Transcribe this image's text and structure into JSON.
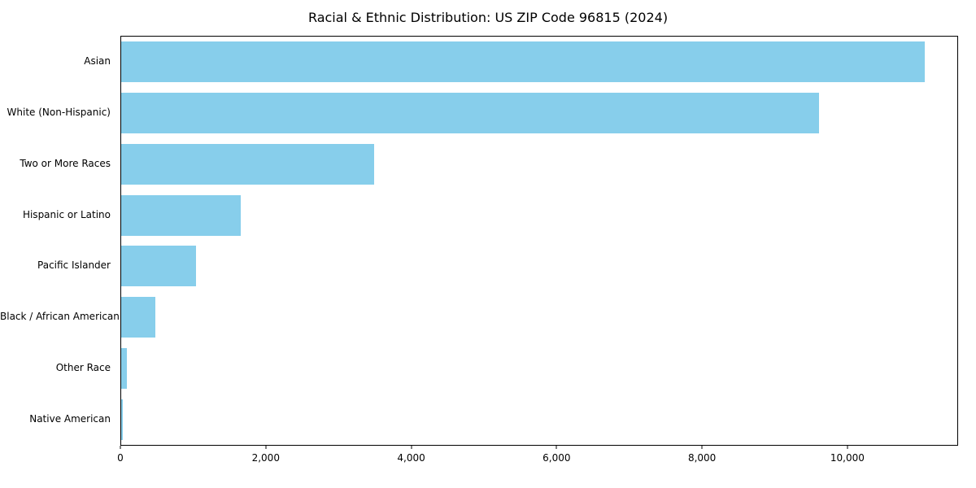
{
  "chart_data": {
    "type": "bar",
    "orientation": "horizontal",
    "title": "Racial & Ethnic Distribution: US ZIP Code 96815 (2024)",
    "categories": [
      "Asian",
      "White (Non-Hispanic)",
      "Two or More Races",
      "Hispanic or Latino",
      "Pacific Islander",
      "Black / African American",
      "Other Race",
      "Native American"
    ],
    "values": [
      11050,
      9600,
      3480,
      1650,
      1030,
      470,
      80,
      25
    ],
    "xlabel": "",
    "ylabel": "",
    "xlim": [
      0,
      11500
    ],
    "xticks": [
      0,
      2000,
      4000,
      6000,
      8000,
      10000
    ],
    "xtick_labels": [
      "0",
      "2,000",
      "4,000",
      "6,000",
      "8,000",
      "10,000"
    ],
    "bar_color": "#87CEEB",
    "grid": false,
    "legend": null
  }
}
